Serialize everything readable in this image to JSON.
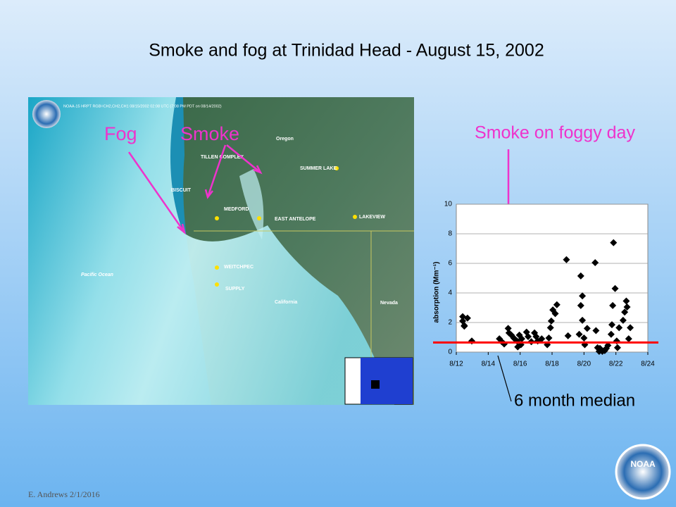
{
  "slide": {
    "title": "Smoke and fog at Trinidad Head - August 15, 2002",
    "footer": "E. Andrews   2/1/2016",
    "logo": "NOAA"
  },
  "map": {
    "header": "NOAA-15 HRPT RGB=CH2,CH2,CH1 08/15/2002 02:08 UTC (7:08 PM PDT on 08/14/2002)",
    "places": [
      "Oregon",
      "California",
      "Nevada",
      "Pacific Ocean",
      "TILLEN COMPLEX",
      "BISCUIT",
      "MEDFORD",
      "EAST ANTELOPE",
      "SUMMER LAKE",
      "LAKEVIEW",
      "WEITCHPEC",
      "SUPPLY"
    ],
    "annotations": [
      "Fog",
      "Smoke"
    ]
  },
  "chart_data": {
    "type": "scatter",
    "title": "Smoke on foggy day",
    "y_label": "absorption (Mm⁻¹)",
    "x": [
      12.4,
      12.4,
      12.5,
      12.5,
      12.7,
      12.97,
      14.7,
      14.85,
      15.0,
      15.25,
      15.3,
      15.45,
      15.6,
      15.8,
      15.85,
      15.95,
      16.05,
      16.1,
      16.4,
      16.5,
      16.7,
      16.9,
      17.0,
      17.1,
      17.35,
      17.7,
      17.8,
      17.9,
      17.95,
      18.05,
      18.2,
      18.3,
      18.9,
      19.0,
      19.7,
      19.8,
      19.8,
      19.9,
      19.9,
      20.0,
      20.05,
      20.2,
      20.7,
      20.75,
      20.85,
      20.95,
      21.0,
      21.15,
      21.3,
      21.4,
      21.5,
      21.7,
      21.75,
      21.8,
      21.85,
      21.95,
      22.05,
      22.1,
      22.2,
      22.45,
      22.55,
      22.65,
      22.7,
      22.8,
      22.9
    ],
    "values": [
      2.4,
      2.1,
      1.8,
      1.75,
      2.3,
      0.75,
      0.9,
      0.7,
      0.55,
      1.6,
      1.3,
      1.15,
      0.95,
      0.75,
      0.35,
      1.15,
      0.5,
      0.9,
      1.35,
      1.05,
      0.7,
      1.3,
      1.05,
      0.75,
      0.9,
      0.5,
      0.95,
      1.65,
      2.1,
      2.85,
      2.6,
      3.2,
      6.25,
      1.1,
      1.2,
      3.15,
      5.15,
      3.8,
      2.15,
      0.95,
      0.5,
      1.6,
      6.05,
      1.45,
      0.3,
      0.05,
      0.25,
      0.05,
      0.1,
      0.25,
      0.45,
      1.2,
      1.85,
      3.15,
      7.4,
      4.3,
      0.75,
      0.3,
      1.65,
      2.15,
      2.7,
      3.45,
      3.05,
      0.9,
      1.65
    ],
    "color": "#000000",
    "xlim": [
      12,
      24
    ],
    "xticks": [
      {
        "value": 12,
        "label": "8/12"
      },
      {
        "value": 14,
        "label": "8/14"
      },
      {
        "value": 16,
        "label": "8/16"
      },
      {
        "value": 18,
        "label": "8/18"
      },
      {
        "value": 20,
        "label": "8/20"
      },
      {
        "value": 22,
        "label": "8/22"
      },
      {
        "value": 24,
        "label": "8/24"
      }
    ],
    "ylim": [
      0,
      10
    ],
    "yticks": [
      0,
      2,
      4,
      6,
      8,
      10
    ],
    "grid": true,
    "reference_line": {
      "label": "6 month median",
      "value": 0.65,
      "color": "#ff0000"
    }
  }
}
